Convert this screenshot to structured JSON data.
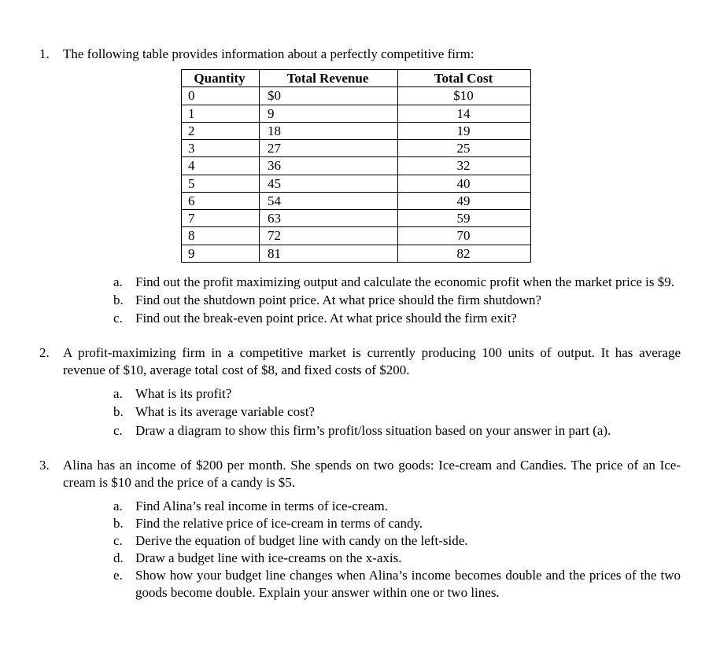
{
  "q1": {
    "number": "1.",
    "intro": "The following table provides information about a perfectly competitive firm:",
    "table": {
      "headers": [
        "Quantity",
        "Total Revenue",
        "Total Cost"
      ],
      "rows": [
        [
          "0",
          "$0",
          "$10"
        ],
        [
          "1",
          "9",
          "14"
        ],
        [
          "2",
          "18",
          "19"
        ],
        [
          "3",
          "27",
          "25"
        ],
        [
          "4",
          "36",
          "32"
        ],
        [
          "5",
          "45",
          "40"
        ],
        [
          "6",
          "54",
          "49"
        ],
        [
          "7",
          "63",
          "59"
        ],
        [
          "8",
          "72",
          "70"
        ],
        [
          "9",
          "81",
          "82"
        ]
      ]
    },
    "subs": [
      {
        "l": "a.",
        "t": "Find out the profit maximizing output and calculate the economic profit when the market price is $9."
      },
      {
        "l": "b.",
        "t": "Find out the shutdown point price. At what price should the firm shutdown?"
      },
      {
        "l": "c.",
        "t": "Find out the break-even point price. At what price should the firm exit?"
      }
    ]
  },
  "q2": {
    "number": "2.",
    "intro": "A profit-maximizing firm in a competitive market is currently producing 100 units of output. It has average revenue of $10, average total cost of $8, and fixed costs of $200.",
    "subs": [
      {
        "l": "a.",
        "t": "What is its profit?"
      },
      {
        "l": "b.",
        "t": "What is its average variable cost?"
      },
      {
        "l": "c.",
        "t": "Draw a diagram to show this firm’s profit/loss situation based on your answer in part (a)."
      }
    ]
  },
  "q3": {
    "number": "3.",
    "intro": "Alina has an income of $200 per month. She spends on two goods: Ice-cream and Candies. The price of an Ice-cream is $10 and the price of a candy is $5.",
    "subs": [
      {
        "l": "a.",
        "t": "Find Alina’s real income in terms of ice-cream."
      },
      {
        "l": "b.",
        "t": "Find the relative price of ice-cream in terms of candy."
      },
      {
        "l": "c.",
        "t": "Derive the equation of budget line with candy on the left-side."
      },
      {
        "l": "d.",
        "t": "Draw a budget line with ice-creams on the x-axis."
      },
      {
        "l": "e.",
        "t": "Show how your budget line changes when Alina’s income becomes double and the prices of the two goods become double. Explain your answer within one or two lines."
      }
    ]
  }
}
